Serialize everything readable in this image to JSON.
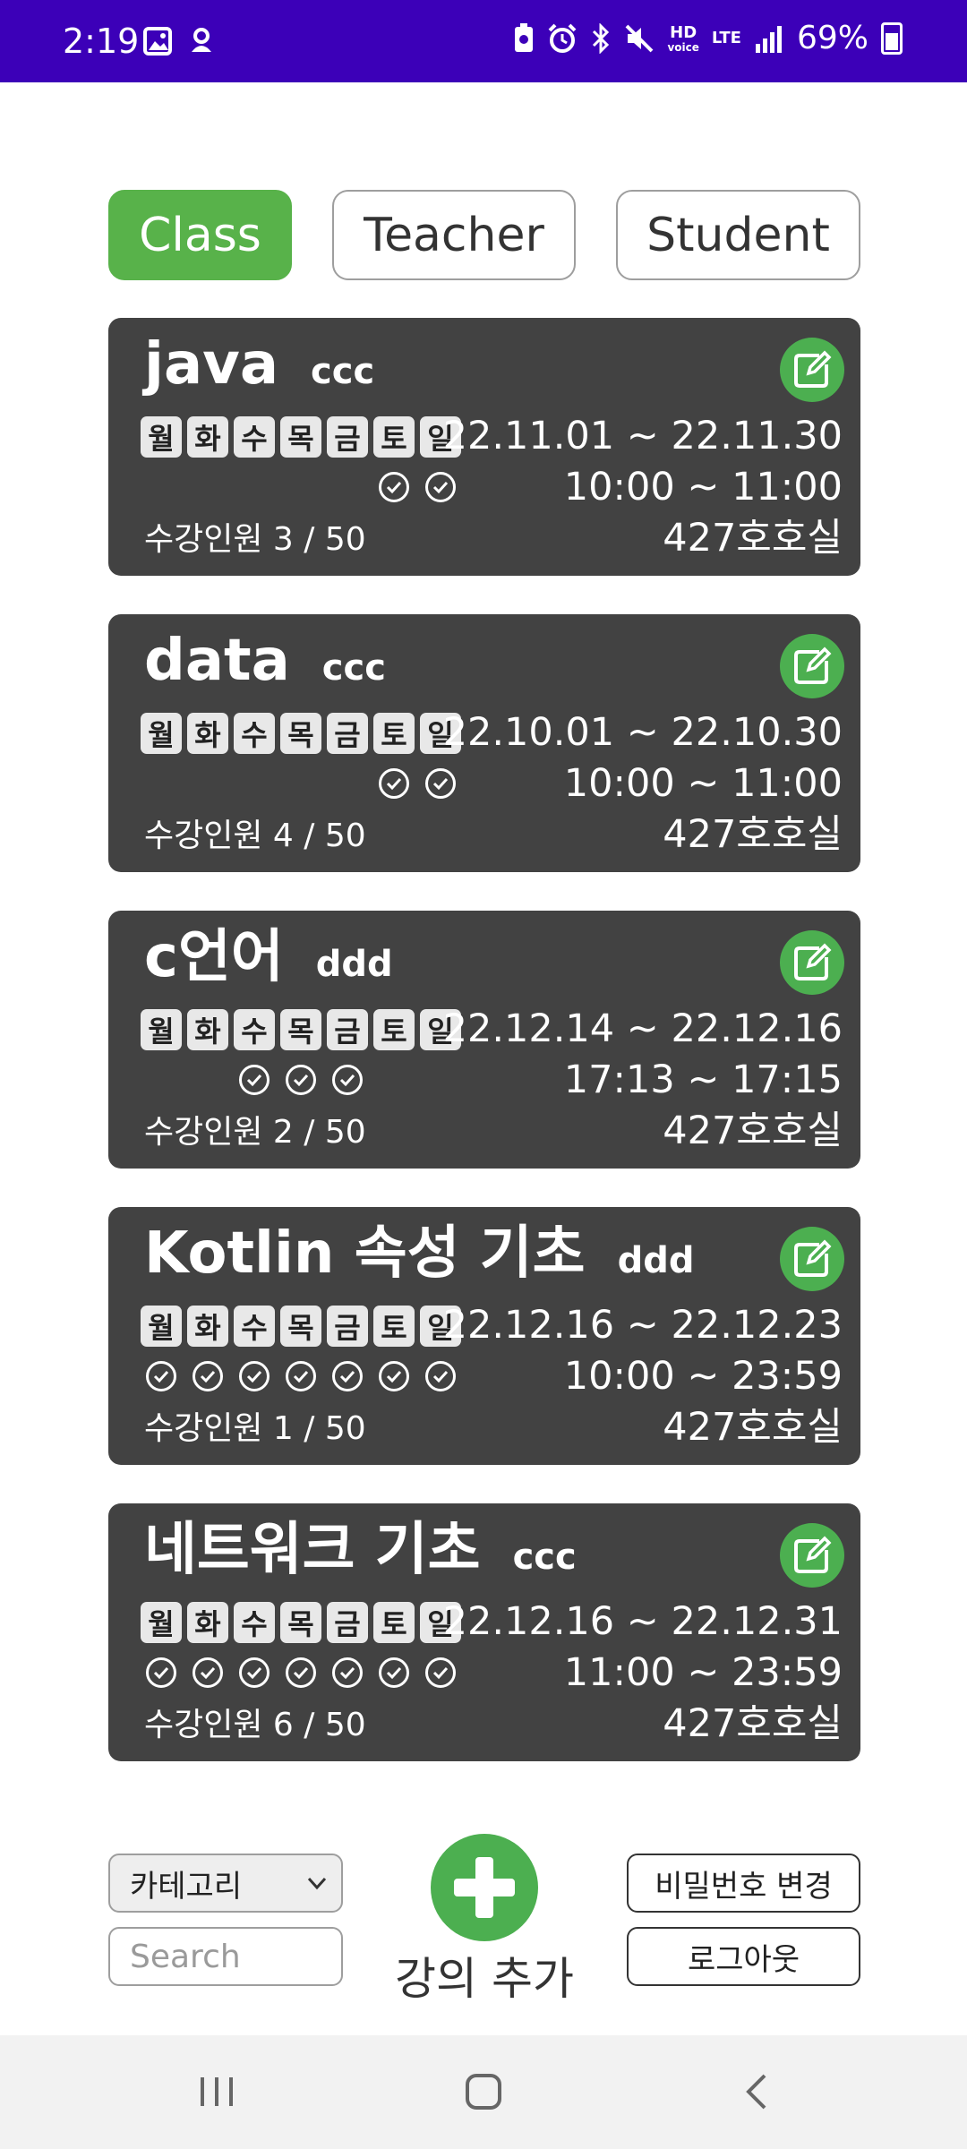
{
  "status_bar": {
    "time": "2:19",
    "hd_label": "HD",
    "voice_label": "voice",
    "lte_label": "LTE",
    "battery": "69%"
  },
  "tabs": [
    {
      "label": "Class",
      "active": true
    },
    {
      "label": "Teacher",
      "active": false
    },
    {
      "label": "Student",
      "active": false
    }
  ],
  "day_labels": [
    "월",
    "화",
    "수",
    "목",
    "금",
    "토",
    "일"
  ],
  "classes": [
    {
      "title": "java",
      "teacher": "ccc",
      "dates": "22.11.01 ~ 22.11.30",
      "times": "10:00 ~ 11:00",
      "count": "수강인원 3 / 50",
      "room": "427호호실",
      "days": [
        false,
        false,
        false,
        false,
        false,
        true,
        true
      ]
    },
    {
      "title": "data",
      "teacher": "ccc",
      "dates": "22.10.01 ~ 22.10.30",
      "times": "10:00 ~ 11:00",
      "count": "수강인원 4 / 50",
      "room": "427호호실",
      "days": [
        false,
        false,
        false,
        false,
        false,
        true,
        true
      ]
    },
    {
      "title": "c언어",
      "teacher": "ddd",
      "dates": "22.12.14 ~ 22.12.16",
      "times": "17:13 ~ 17:15",
      "count": "수강인원 2 / 50",
      "room": "427호호실",
      "days": [
        false,
        false,
        true,
        true,
        true,
        false,
        false
      ]
    },
    {
      "title": "Kotlin 속성 기초",
      "teacher": "ddd",
      "dates": "22.12.16 ~ 22.12.23",
      "times": "10:00 ~ 23:59",
      "count": "수강인원 1 / 50",
      "room": "427호호실",
      "days": [
        true,
        true,
        true,
        true,
        true,
        true,
        true
      ]
    },
    {
      "title": "네트워크 기초",
      "teacher": "ccc",
      "dates": "22.12.16 ~ 22.12.31",
      "times": "11:00 ~ 23:59",
      "count": "수강인원 6 / 50",
      "room": "427호호실",
      "days": [
        true,
        true,
        true,
        true,
        true,
        true,
        true
      ]
    }
  ],
  "controls": {
    "category_selected": "카테고리",
    "search_placeholder": "Search",
    "add_label": "강의 추가",
    "change_password": "비밀번호 변경",
    "logout": "로그아웃"
  },
  "colors": {
    "status_bar": "#3c00b8",
    "accent_green": "#58b24a",
    "card_bg": "#424242"
  },
  "icons": [
    "image-icon",
    "app-icon",
    "battery-saver-icon",
    "alarm-icon",
    "bluetooth-icon",
    "mute-icon",
    "signal-icon",
    "battery-icon",
    "edit-icon",
    "check-circle-icon",
    "plus-icon",
    "recents-icon",
    "home-icon",
    "back-icon"
  ]
}
